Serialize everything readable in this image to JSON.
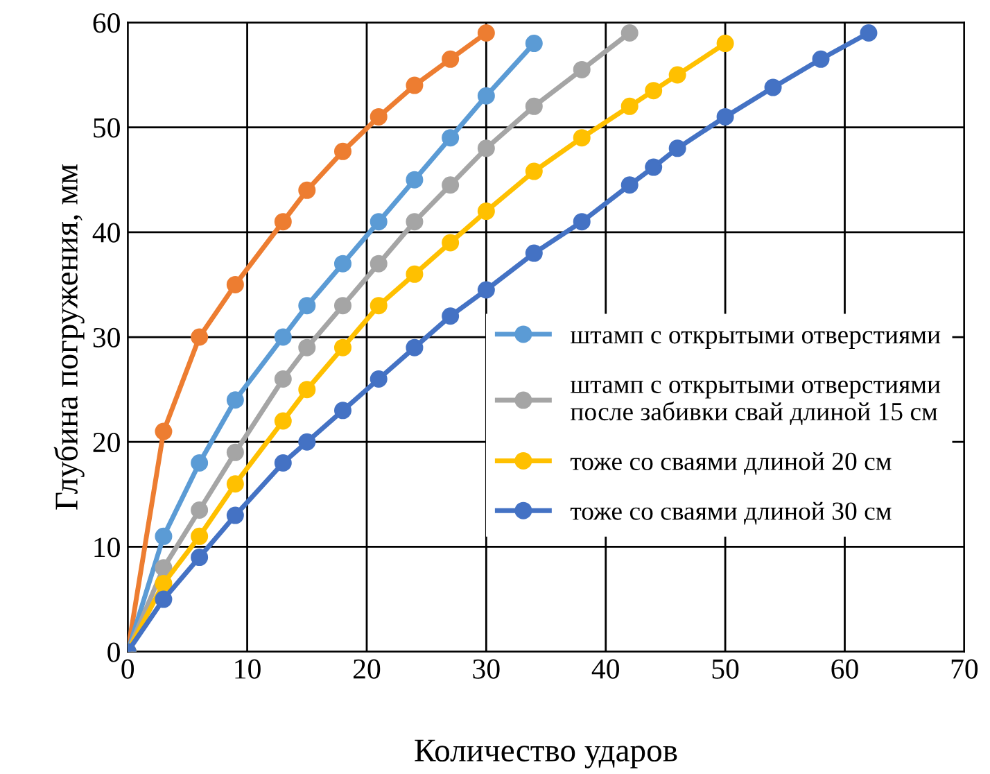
{
  "chart_data": {
    "type": "line",
    "xlabel": "Количество ударов",
    "ylabel": "Глубина погружения, мм",
    "xlim": [
      0,
      70
    ],
    "ylim": [
      0,
      60
    ],
    "xticks": [
      0,
      10,
      20,
      30,
      40,
      50,
      60,
      70
    ],
    "yticks": [
      0,
      10,
      20,
      30,
      40,
      50,
      60
    ],
    "grid": true,
    "legend": "right",
    "marker": "circle",
    "line_style": "solid",
    "series": [
      {
        "color": "#ed7d31",
        "x": [
          0,
          3,
          6,
          9,
          13,
          15,
          18,
          21,
          24,
          27,
          30
        ],
        "values": [
          0,
          21,
          30,
          35,
          41,
          44,
          47.7,
          51,
          54,
          56.5,
          59
        ]
      },
      {
        "name": "штамп с открытыми отверстиями",
        "color": "#5b9bd5",
        "x": [
          0,
          3,
          6,
          9,
          13,
          15,
          18,
          21,
          24,
          27,
          30,
          34
        ],
        "values": [
          0,
          11,
          18,
          24,
          30,
          33,
          37,
          41,
          45,
          49,
          53,
          58
        ]
      },
      {
        "name": "штамп с открытыми отверстиями\nпосле забивки свай длиной 15 см",
        "color": "#a5a5a5",
        "x": [
          0,
          3,
          6,
          9,
          13,
          15,
          18,
          21,
          24,
          27,
          30,
          34,
          38,
          42
        ],
        "values": [
          0,
          8,
          13.5,
          19,
          26,
          29,
          33,
          37,
          41,
          44.5,
          48,
          52,
          55.5,
          59
        ]
      },
      {
        "name": "тоже со сваями длиной 20 см",
        "color": "#ffc000",
        "x": [
          0,
          3,
          6,
          9,
          13,
          15,
          18,
          21,
          24,
          27,
          30,
          34,
          38,
          42,
          44,
          46,
          50
        ],
        "values": [
          0,
          6.5,
          11,
          16,
          22,
          25,
          29,
          33,
          36,
          39,
          42,
          45.8,
          49,
          52,
          53.5,
          55,
          58
        ]
      },
      {
        "name": "тоже со сваями длиной 30 см",
        "color": "#4472c4",
        "x": [
          0,
          3,
          6,
          9,
          13,
          15,
          18,
          21,
          24,
          27,
          30,
          34,
          38,
          42,
          44,
          46,
          50,
          54,
          58,
          62
        ],
        "values": [
          0,
          5,
          9,
          13,
          18,
          20,
          23,
          26,
          29,
          32,
          34.5,
          38,
          41,
          44.5,
          46.2,
          48,
          51,
          53.8,
          56.5,
          59
        ]
      }
    ]
  }
}
